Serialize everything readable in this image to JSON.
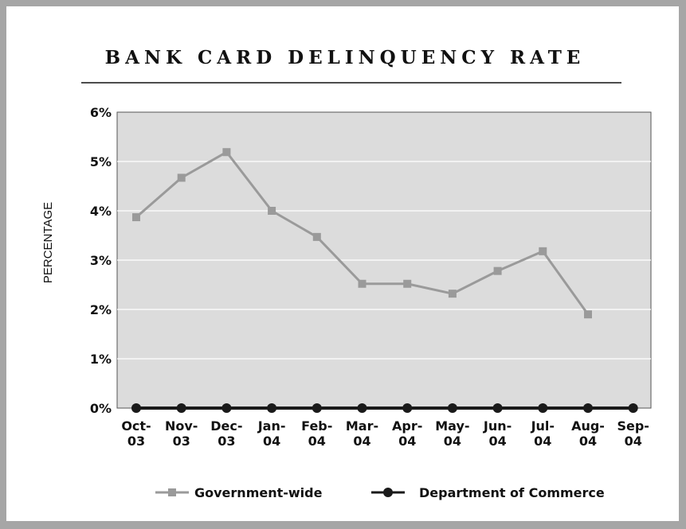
{
  "chart_data": {
    "type": "line",
    "title": "BANK CARD DELINQUENCY RATE",
    "ylabel": "PERCENTAGE",
    "xlabel": "",
    "categories": [
      [
        "Oct-",
        "03"
      ],
      [
        "Nov-",
        "03"
      ],
      [
        "Dec-",
        "03"
      ],
      [
        "Jan-",
        "04"
      ],
      [
        "Feb-",
        "04"
      ],
      [
        "Mar-",
        "04"
      ],
      [
        "Apr-",
        "04"
      ],
      [
        "May-",
        "04"
      ],
      [
        "Jun-",
        "04"
      ],
      [
        "Jul-",
        "04"
      ],
      [
        "Aug-",
        "04"
      ],
      [
        "Sep-",
        "04"
      ]
    ],
    "ylim": [
      0,
      6
    ],
    "yticks": [
      "0%",
      "1%",
      "2%",
      "3%",
      "4%",
      "5%",
      "6%"
    ],
    "grid": true,
    "legend_position": "bottom",
    "series": [
      {
        "name": "Government-wide",
        "color": "#9a9a9a",
        "marker": "square",
        "values": [
          3.87,
          4.67,
          5.19,
          4.0,
          3.47,
          2.52,
          2.52,
          2.32,
          2.78,
          3.18,
          1.9,
          null
        ]
      },
      {
        "name": "Department of Commerce",
        "color": "#1a1a1a",
        "marker": "circle",
        "values": [
          0,
          0,
          0,
          0,
          0,
          0,
          0,
          0,
          0,
          0,
          0,
          0
        ]
      }
    ]
  }
}
